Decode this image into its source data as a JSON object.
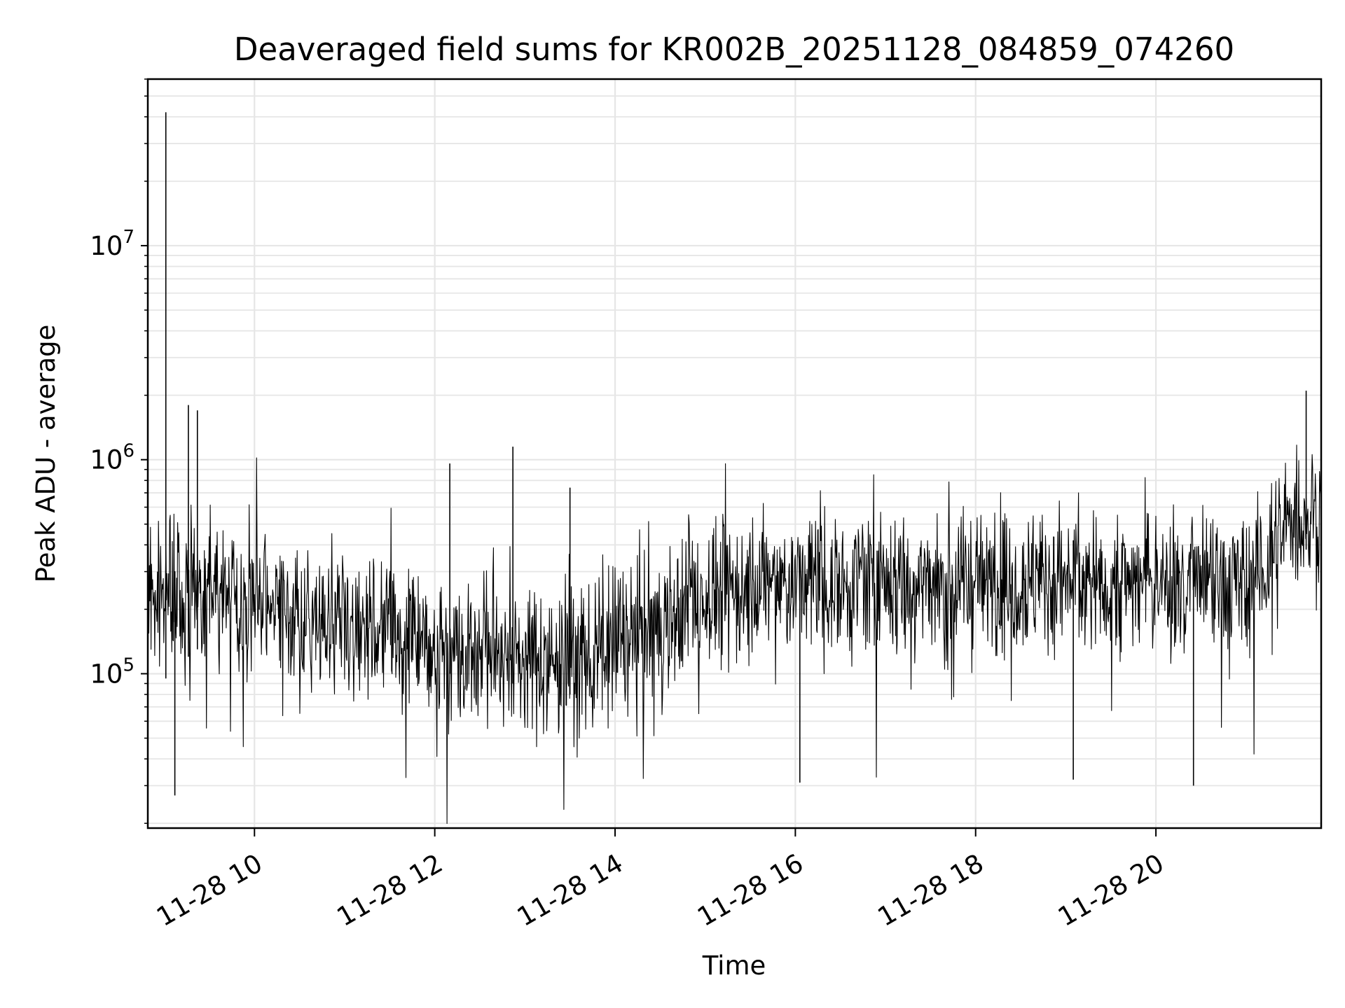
{
  "chart_data": {
    "type": "line",
    "title": "Deaveraged field sums for KR002B_20251128_084859_074260",
    "xlabel": "Time",
    "ylabel": "Peak ADU - average",
    "yscale": "log",
    "grid": true,
    "grid_minor_y": true,
    "line_color": "#000000",
    "grid_color": "#e6e6e6",
    "xlim": [
      "11-28 08:49",
      "11-28 21:50"
    ],
    "ylim": [
      19000,
      60000000
    ],
    "x_ticks": [
      {
        "t": "11-28 10:00",
        "label": "11-28 10"
      },
      {
        "t": "11-28 12:00",
        "label": "11-28 12"
      },
      {
        "t": "11-28 14:00",
        "label": "11-28 14"
      },
      {
        "t": "11-28 16:00",
        "label": "11-28 16"
      },
      {
        "t": "11-28 18:00",
        "label": "11-28 18"
      },
      {
        "t": "11-28 20:00",
        "label": "11-28 20"
      }
    ],
    "y_ticks": [
      {
        "value": 100000,
        "base": "10",
        "exp": "5"
      },
      {
        "value": 1000000,
        "base": "10",
        "exp": "6"
      },
      {
        "value": 10000000,
        "base": "10",
        "exp": "7"
      }
    ],
    "series": [
      {
        "x": [
          "11-28 08:49",
          "11-28 09:00",
          "11-28 09:10",
          "11-28 09:20",
          "11-28 09:30",
          "11-28 09:45",
          "11-28 10:00",
          "11-28 10:30",
          "11-28 11:00",
          "11-28 11:30",
          "11-28 12:00",
          "11-28 12:30",
          "11-28 13:00",
          "11-28 13:30",
          "11-28 14:00",
          "11-28 14:30",
          "11-28 15:00",
          "11-28 15:30",
          "11-28 16:00",
          "11-28 16:30",
          "11-28 17:00",
          "11-28 17:30",
          "11-28 18:00",
          "11-28 18:30",
          "11-28 19:00",
          "11-28 19:30",
          "11-28 20:00",
          "11-28 20:30",
          "11-28 21:00",
          "11-28 21:15",
          "11-28 21:30",
          "11-28 21:50"
        ],
        "y": [
          220000,
          250000,
          210000,
          280000,
          240000,
          220000,
          200000,
          185000,
          175000,
          160000,
          140000,
          130000,
          115000,
          110000,
          135000,
          170000,
          230000,
          255000,
          265000,
          270000,
          260000,
          265000,
          270000,
          275000,
          270000,
          265000,
          275000,
          260000,
          250000,
          330000,
          520000,
          560000
        ]
      }
    ],
    "spikes": [
      {
        "t": "11-28 09:01",
        "high": 42000000,
        "low": 95000
      },
      {
        "t": "11-28 09:16",
        "high": 1800000,
        "low": 120000
      },
      {
        "t": "11-28 09:22",
        "high": 1700000,
        "low": 130000
      },
      {
        "t": "11-28 09:07",
        "high": 300000,
        "low": 27000
      },
      {
        "t": "11-28 12:10",
        "high": 960000,
        "low": 100000
      },
      {
        "t": "11-28 12:52",
        "high": 1150000,
        "low": 90000
      },
      {
        "t": "11-28 13:30",
        "high": 740000,
        "low": 80000
      },
      {
        "t": "11-28 16:03",
        "high": 400000,
        "low": 31000
      },
      {
        "t": "11-28 19:05",
        "high": 420000,
        "low": 32000
      },
      {
        "t": "11-28 20:25",
        "high": 380000,
        "low": 30000
      },
      {
        "t": "11-28 21:40",
        "high": 2100000,
        "low": 380000
      }
    ]
  }
}
